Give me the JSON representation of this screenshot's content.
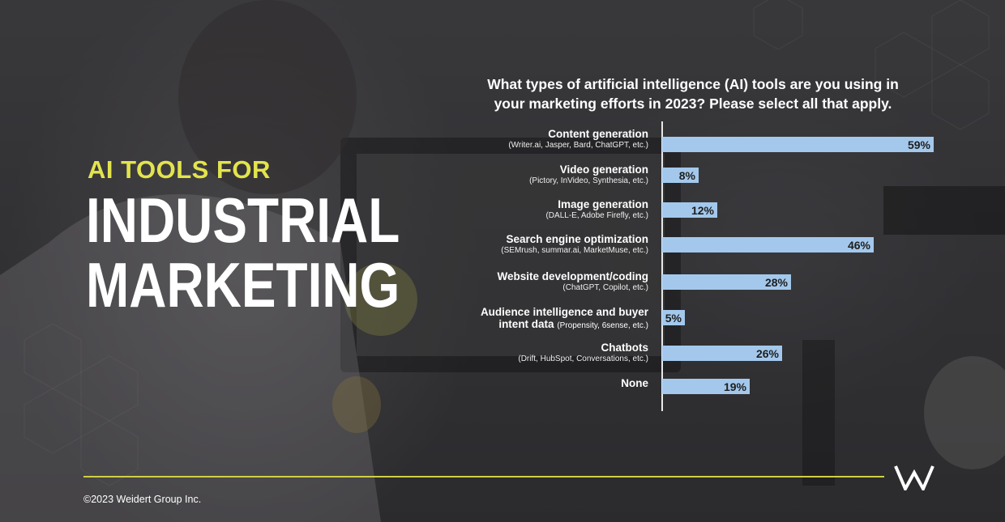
{
  "slide": {
    "kicker": "AI TOOLS FOR",
    "headline_line1": "INDUSTRIAL",
    "headline_line2": "MARKETING",
    "copyright": "©2023 Weidert Group Inc.",
    "logo_icon": "w-logo-icon",
    "accent_color": "#e3e44d",
    "bar_color": "#a3c8ec"
  },
  "chart_data": {
    "type": "bar",
    "orientation": "horizontal",
    "title_line1": "What types of artificial intelligence (AI) tools are you using in",
    "title_line2": "your marketing efforts in 2023? Please select all that apply.",
    "categories": [
      {
        "name": "Content generation",
        "detail": "(Writer.ai, Jasper, Bard, ChatGPT, etc.)"
      },
      {
        "name": "Video generation",
        "detail": "(Pictory, InVideo, Synthesia, etc.)"
      },
      {
        "name": "Image generation",
        "detail": "(DALL-E, Adobe Firefly, etc.)"
      },
      {
        "name": "Search engine optimization",
        "detail": "(SEMrush, summar.ai, MarketMuse, etc.)"
      },
      {
        "name": "Website development/coding",
        "detail": "(ChatGPT, Copilot, etc.)"
      },
      {
        "name": "Audience intelligence and buyer",
        "name2": "intent data",
        "detail": "(Propensity, 6sense, etc.)"
      },
      {
        "name": "Chatbots",
        "detail": "(Drift, HubSpot, Conversations, etc.)"
      },
      {
        "name": "None",
        "detail": ""
      }
    ],
    "values": [
      59,
      8,
      12,
      46,
      28,
      5,
      26,
      19
    ],
    "value_labels": [
      "59%",
      "8%",
      "12%",
      "46%",
      "28%",
      "5%",
      "26%",
      "19%"
    ],
    "xlim": [
      0,
      60
    ],
    "grid": false,
    "legend": "none"
  }
}
